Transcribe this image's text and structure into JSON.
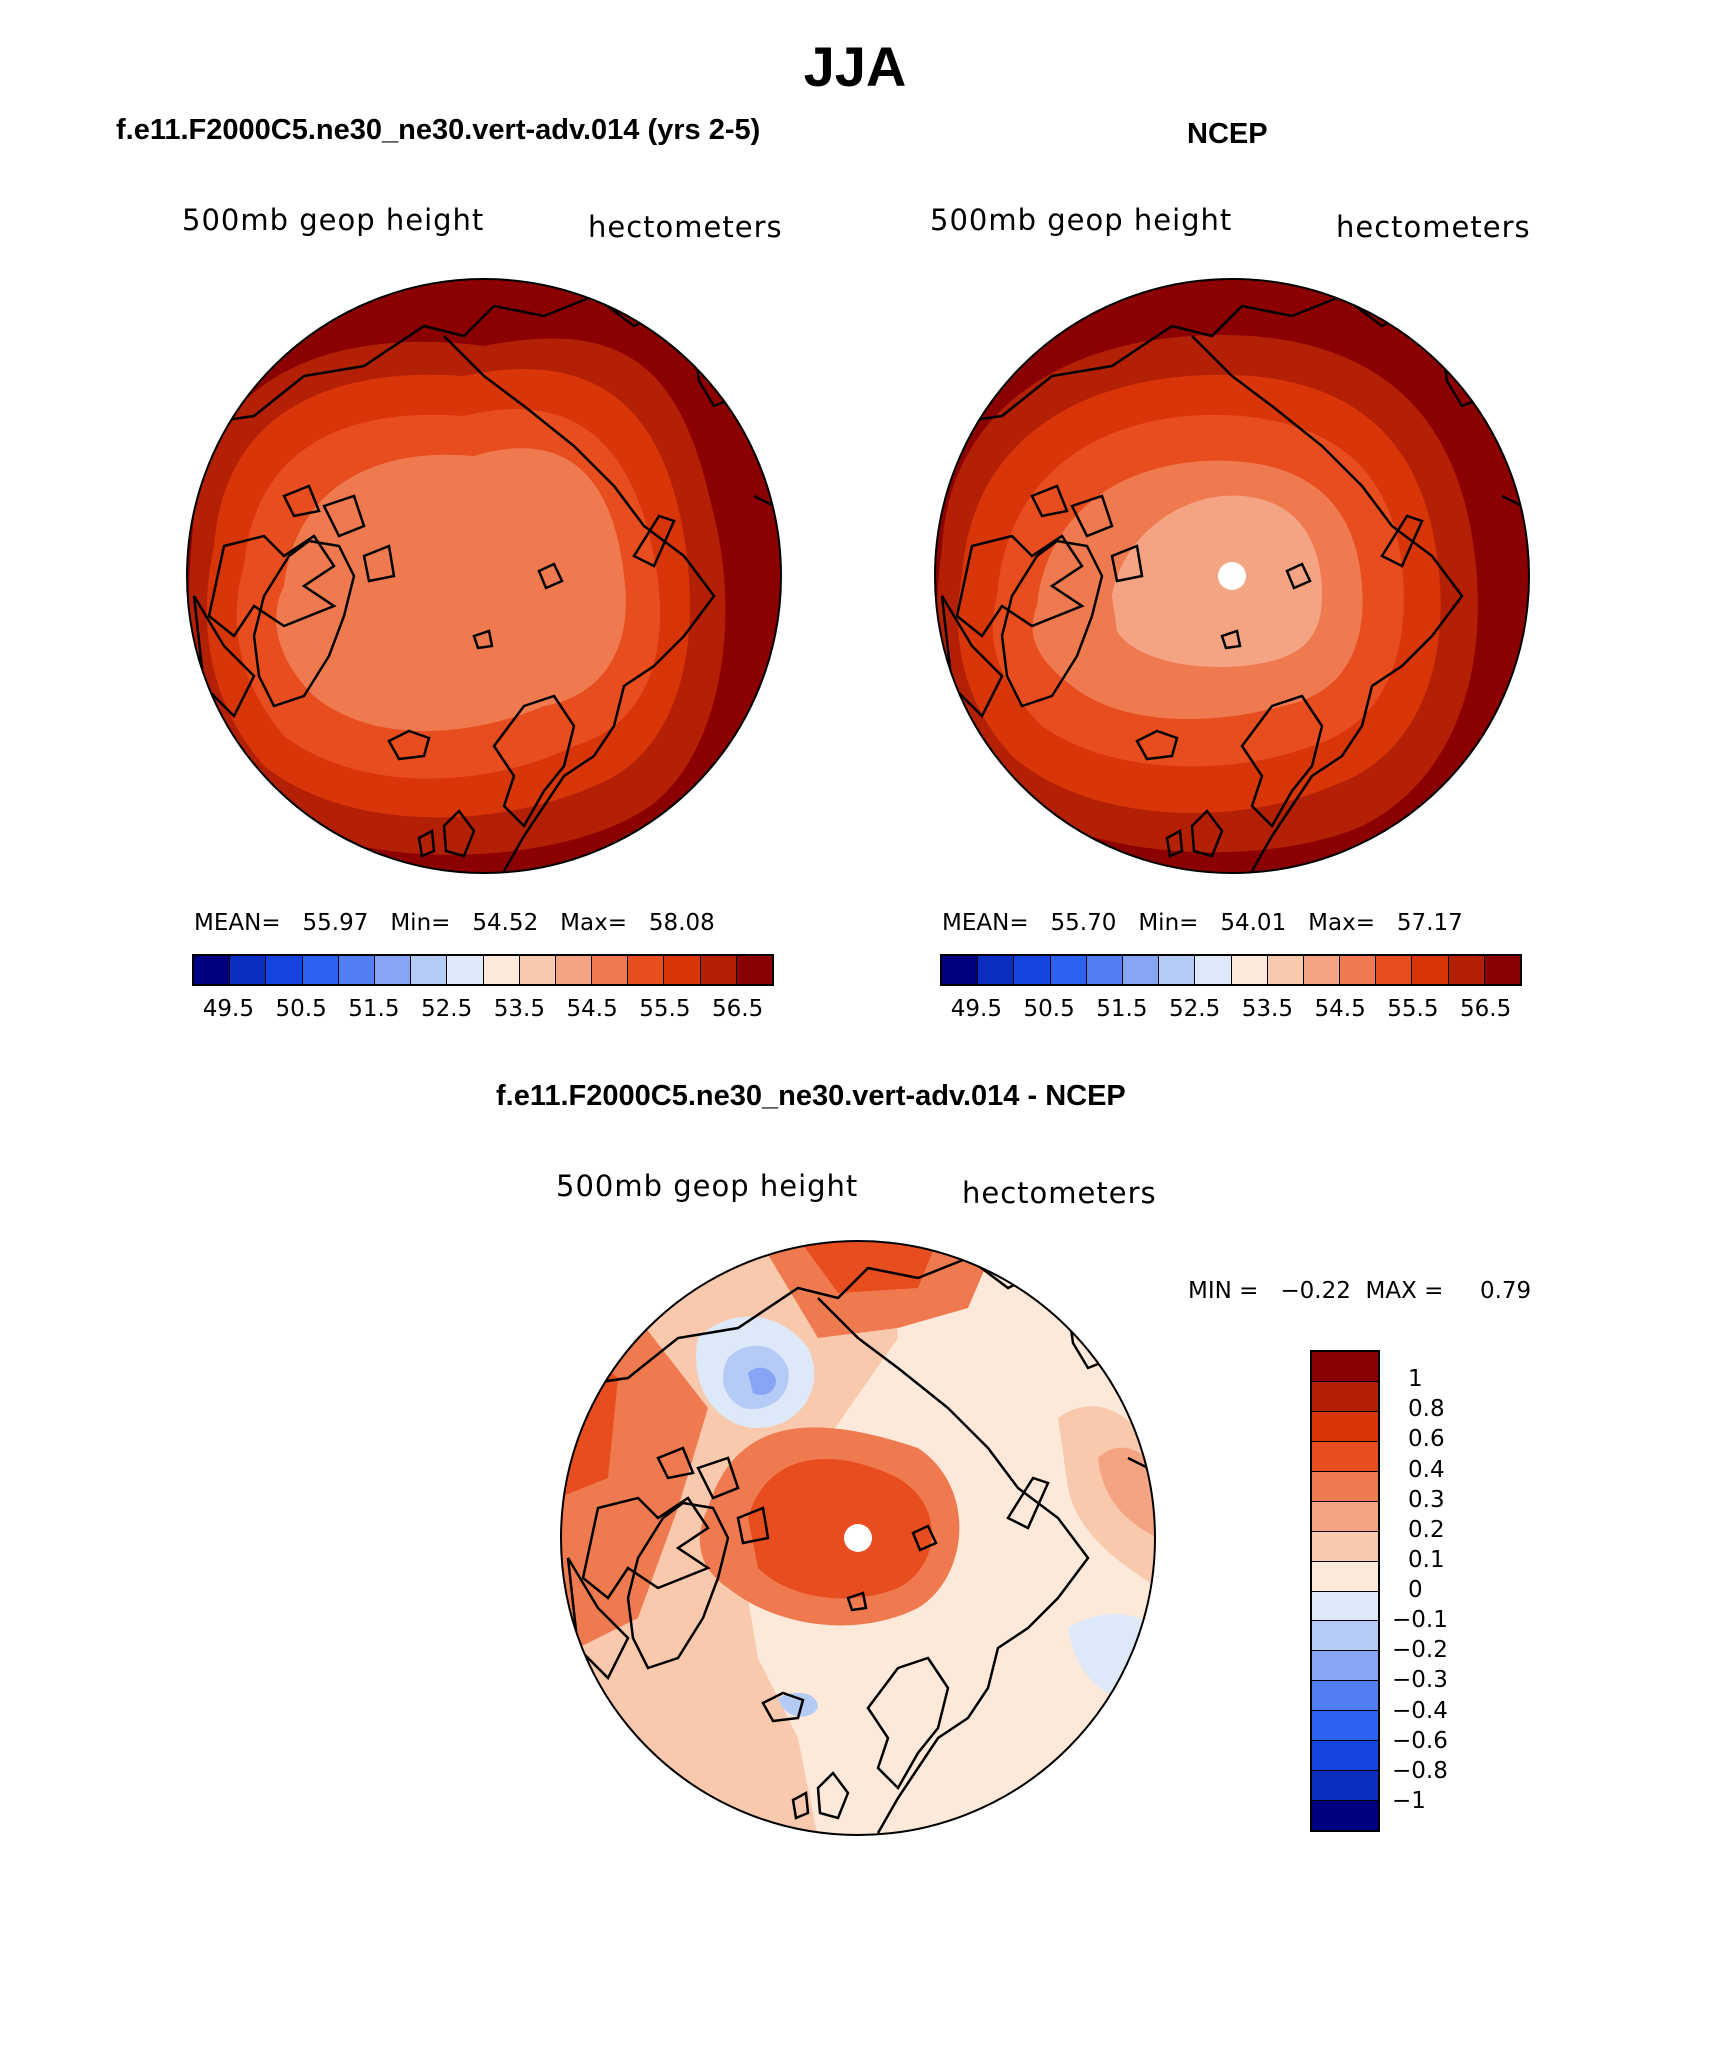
{
  "title": "JJA",
  "panels": {
    "model": {
      "subtitle": "f.e11.F2000C5.ne30_ne30.vert-adv.014 (yrs 2-5)",
      "variable": "500mb geop height",
      "units": "hectometers",
      "stats": {
        "mean_label": "MEAN=",
        "mean": "55.97",
        "min_label": "Min=",
        "min": "54.52",
        "max_label": "Max=",
        "max": "58.08"
      }
    },
    "obs": {
      "subtitle": "NCEP",
      "variable": "500mb geop height",
      "units": "hectometers",
      "stats": {
        "mean_label": "MEAN=",
        "mean": "55.70",
        "min_label": "Min=",
        "min": "54.01",
        "max_label": "Max=",
        "max": "57.17"
      }
    },
    "diff": {
      "subtitle": "f.e11.F2000C5.ne30_ne30.vert-adv.014 - NCEP",
      "variable": "500mb geop height",
      "units": "hectometers",
      "stats": {
        "min_label": "MIN =",
        "min": "−0.22",
        "max_label": "MAX =",
        "max": "0.79"
      }
    }
  },
  "colorbar_abs": {
    "colors": [
      "#000080",
      "#0b2ec0",
      "#1545e0",
      "#2c62f2",
      "#527ef3",
      "#86a5f4",
      "#b4cbf6",
      "#dde9f9",
      "#fde9d9",
      "#f9c9ad",
      "#f5a483",
      "#f07a50",
      "#e84d1f",
      "#d83508",
      "#b32006",
      "#8b0000"
    ],
    "tick_labels": [
      "49.5",
      "50.5",
      "51.5",
      "52.5",
      "53.5",
      "54.5",
      "55.5",
      "56.5"
    ]
  },
  "colorbar_diff": {
    "colors": [
      "#8b0000",
      "#b32006",
      "#d83508",
      "#e84d1f",
      "#f07a50",
      "#f5a483",
      "#f9c9ad",
      "#fde9d9",
      "#dde9f9",
      "#b4cbf6",
      "#86a5f4",
      "#527ef3",
      "#2c62f2",
      "#1545e0",
      "#0b2ec0",
      "#000080"
    ],
    "tick_labels": [
      "1",
      "0.8",
      "0.6",
      "0.4",
      "0.3",
      "0.2",
      "0.1",
      "0",
      "−0.1",
      "−0.2",
      "−0.3",
      "−0.4",
      "−0.6",
      "−0.8",
      "−1"
    ]
  },
  "chart_data": [
    {
      "type": "heatmap",
      "title": "f.e11.F2000C5.ne30_ne30.vert-adv.014 (yrs 2-5)",
      "field": "500mb geop height",
      "units": "hectometers",
      "projection": "north polar stereographic",
      "mean": 55.97,
      "min": 54.52,
      "max": 58.08,
      "contour_levels": [
        49.5,
        50,
        50.5,
        51,
        51.5,
        52,
        52.5,
        53,
        53.5,
        54,
        54.5,
        55,
        55.5,
        56,
        56.5
      ]
    },
    {
      "type": "heatmap",
      "title": "NCEP",
      "field": "500mb geop height",
      "units": "hectometers",
      "projection": "north polar stereographic",
      "mean": 55.7,
      "min": 54.01,
      "max": 57.17,
      "contour_levels": [
        49.5,
        50,
        50.5,
        51,
        51.5,
        52,
        52.5,
        53,
        53.5,
        54,
        54.5,
        55,
        55.5,
        56,
        56.5
      ]
    },
    {
      "type": "heatmap",
      "title": "f.e11.F2000C5.ne30_ne30.vert-adv.014 - NCEP",
      "field": "500mb geop height",
      "units": "hectometers",
      "projection": "north polar stereographic",
      "min": -0.22,
      "max": 0.79,
      "contour_levels": [
        -1,
        -0.8,
        -0.6,
        -0.4,
        -0.3,
        -0.2,
        -0.1,
        0,
        0.1,
        0.2,
        0.3,
        0.4,
        0.6,
        0.8,
        1
      ]
    }
  ]
}
